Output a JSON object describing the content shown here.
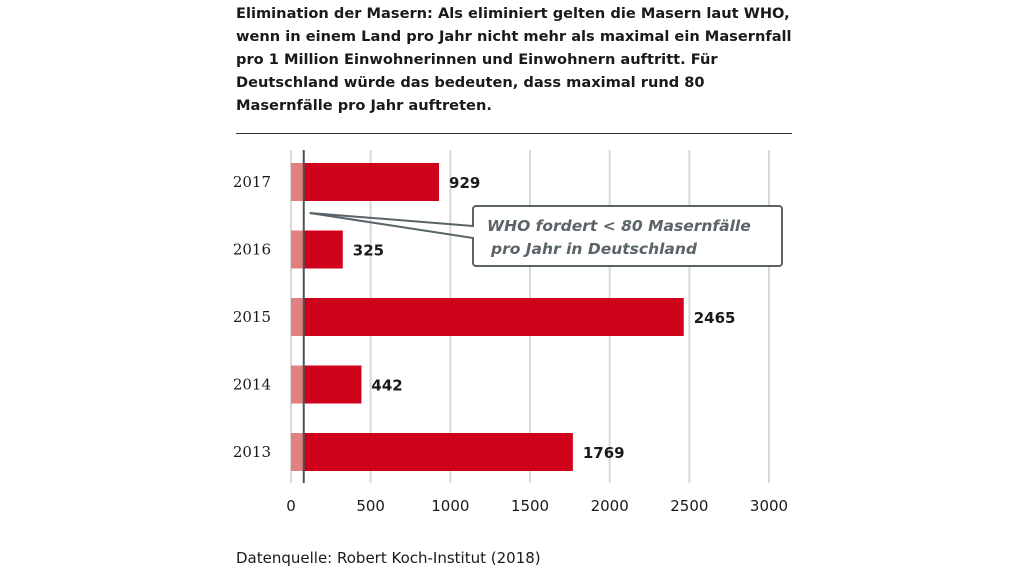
{
  "title": "Elimination der Masern: Als eliminiert gelten die Masern laut WHO, wenn in einem Land pro Jahr nicht mehr als maximal ein Masernfall pro 1 Million Einwohnerinnen und Einwohnern auftritt. Für Deutschland würde das bedeuten, dass maximal rund 80 Masernfälle pro Jahr auftreten.",
  "source": "Datenquelle: Robert Koch-Institut (2018)",
  "colors": {
    "bar": "#d0021b",
    "threshold_zone": "#e08080",
    "grid": "#d9d9d9",
    "annotation_border": "#5a6468",
    "annotation_text": "#5a6468"
  },
  "chart_data": {
    "type": "bar",
    "orientation": "horizontal",
    "title": "",
    "xlabel": "",
    "ylabel": "",
    "categories": [
      "2017",
      "2016",
      "2015",
      "2014",
      "2013"
    ],
    "values": [
      929,
      325,
      2465,
      442,
      1769
    ],
    "xlim": [
      0,
      3000
    ],
    "xticks": [
      "0",
      "500",
      "1000",
      "1500",
      "2000",
      "2500",
      "3000"
    ],
    "grid": true,
    "threshold": {
      "value": 80,
      "label_line1": "WHO fordert < 80 Masernfälle",
      "label_line2": "pro Jahr in Deutschland"
    }
  }
}
